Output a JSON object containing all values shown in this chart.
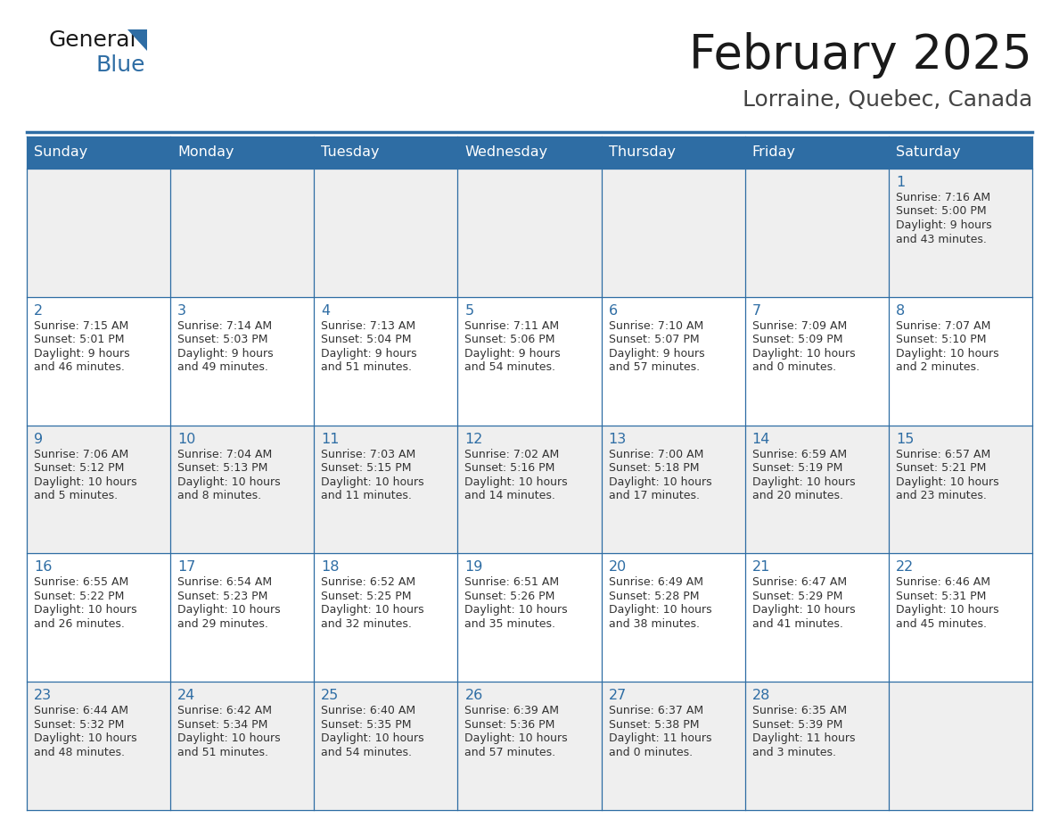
{
  "title": "February 2025",
  "subtitle": "Lorraine, Quebec, Canada",
  "header_bg": "#2E6DA4",
  "header_text": "#FFFFFF",
  "cell_bg_light": "#EFEFEF",
  "cell_bg_white": "#FFFFFF",
  "border_color": "#2E6DA4",
  "day_names": [
    "Sunday",
    "Monday",
    "Tuesday",
    "Wednesday",
    "Thursday",
    "Friday",
    "Saturday"
  ],
  "title_color": "#1a1a1a",
  "subtitle_color": "#444444",
  "day_number_color": "#2E6DA4",
  "cell_text_color": "#333333",
  "logo_general_color": "#1a1a1a",
  "logo_blue_color": "#2E6DA4",
  "logo_triangle_color": "#2E6DA4",
  "days": [
    {
      "day": 1,
      "col": 6,
      "row": 0,
      "sunrise": "7:16 AM",
      "sunset": "5:00 PM",
      "daylight": "9 hours and 43 minutes."
    },
    {
      "day": 2,
      "col": 0,
      "row": 1,
      "sunrise": "7:15 AM",
      "sunset": "5:01 PM",
      "daylight": "9 hours and 46 minutes."
    },
    {
      "day": 3,
      "col": 1,
      "row": 1,
      "sunrise": "7:14 AM",
      "sunset": "5:03 PM",
      "daylight": "9 hours and 49 minutes."
    },
    {
      "day": 4,
      "col": 2,
      "row": 1,
      "sunrise": "7:13 AM",
      "sunset": "5:04 PM",
      "daylight": "9 hours and 51 minutes."
    },
    {
      "day": 5,
      "col": 3,
      "row": 1,
      "sunrise": "7:11 AM",
      "sunset": "5:06 PM",
      "daylight": "9 hours and 54 minutes."
    },
    {
      "day": 6,
      "col": 4,
      "row": 1,
      "sunrise": "7:10 AM",
      "sunset": "5:07 PM",
      "daylight": "9 hours and 57 minutes."
    },
    {
      "day": 7,
      "col": 5,
      "row": 1,
      "sunrise": "7:09 AM",
      "sunset": "5:09 PM",
      "daylight": "10 hours and 0 minutes."
    },
    {
      "day": 8,
      "col": 6,
      "row": 1,
      "sunrise": "7:07 AM",
      "sunset": "5:10 PM",
      "daylight": "10 hours and 2 minutes."
    },
    {
      "day": 9,
      "col": 0,
      "row": 2,
      "sunrise": "7:06 AM",
      "sunset": "5:12 PM",
      "daylight": "10 hours and 5 minutes."
    },
    {
      "day": 10,
      "col": 1,
      "row": 2,
      "sunrise": "7:04 AM",
      "sunset": "5:13 PM",
      "daylight": "10 hours and 8 minutes."
    },
    {
      "day": 11,
      "col": 2,
      "row": 2,
      "sunrise": "7:03 AM",
      "sunset": "5:15 PM",
      "daylight": "10 hours and 11 minutes."
    },
    {
      "day": 12,
      "col": 3,
      "row": 2,
      "sunrise": "7:02 AM",
      "sunset": "5:16 PM",
      "daylight": "10 hours and 14 minutes."
    },
    {
      "day": 13,
      "col": 4,
      "row": 2,
      "sunrise": "7:00 AM",
      "sunset": "5:18 PM",
      "daylight": "10 hours and 17 minutes."
    },
    {
      "day": 14,
      "col": 5,
      "row": 2,
      "sunrise": "6:59 AM",
      "sunset": "5:19 PM",
      "daylight": "10 hours and 20 minutes."
    },
    {
      "day": 15,
      "col": 6,
      "row": 2,
      "sunrise": "6:57 AM",
      "sunset": "5:21 PM",
      "daylight": "10 hours and 23 minutes."
    },
    {
      "day": 16,
      "col": 0,
      "row": 3,
      "sunrise": "6:55 AM",
      "sunset": "5:22 PM",
      "daylight": "10 hours and 26 minutes."
    },
    {
      "day": 17,
      "col": 1,
      "row": 3,
      "sunrise": "6:54 AM",
      "sunset": "5:23 PM",
      "daylight": "10 hours and 29 minutes."
    },
    {
      "day": 18,
      "col": 2,
      "row": 3,
      "sunrise": "6:52 AM",
      "sunset": "5:25 PM",
      "daylight": "10 hours and 32 minutes."
    },
    {
      "day": 19,
      "col": 3,
      "row": 3,
      "sunrise": "6:51 AM",
      "sunset": "5:26 PM",
      "daylight": "10 hours and 35 minutes."
    },
    {
      "day": 20,
      "col": 4,
      "row": 3,
      "sunrise": "6:49 AM",
      "sunset": "5:28 PM",
      "daylight": "10 hours and 38 minutes."
    },
    {
      "day": 21,
      "col": 5,
      "row": 3,
      "sunrise": "6:47 AM",
      "sunset": "5:29 PM",
      "daylight": "10 hours and 41 minutes."
    },
    {
      "day": 22,
      "col": 6,
      "row": 3,
      "sunrise": "6:46 AM",
      "sunset": "5:31 PM",
      "daylight": "10 hours and 45 minutes."
    },
    {
      "day": 23,
      "col": 0,
      "row": 4,
      "sunrise": "6:44 AM",
      "sunset": "5:32 PM",
      "daylight": "10 hours and 48 minutes."
    },
    {
      "day": 24,
      "col": 1,
      "row": 4,
      "sunrise": "6:42 AM",
      "sunset": "5:34 PM",
      "daylight": "10 hours and 51 minutes."
    },
    {
      "day": 25,
      "col": 2,
      "row": 4,
      "sunrise": "6:40 AM",
      "sunset": "5:35 PM",
      "daylight": "10 hours and 54 minutes."
    },
    {
      "day": 26,
      "col": 3,
      "row": 4,
      "sunrise": "6:39 AM",
      "sunset": "5:36 PM",
      "daylight": "10 hours and 57 minutes."
    },
    {
      "day": 27,
      "col": 4,
      "row": 4,
      "sunrise": "6:37 AM",
      "sunset": "5:38 PM",
      "daylight": "11 hours and 0 minutes."
    },
    {
      "day": 28,
      "col": 5,
      "row": 4,
      "sunrise": "6:35 AM",
      "sunset": "5:39 PM",
      "daylight": "11 hours and 3 minutes."
    }
  ],
  "row_bg_colors": [
    "#EFEFEF",
    "#FFFFFF",
    "#EFEFEF",
    "#FFFFFF",
    "#EFEFEF"
  ]
}
